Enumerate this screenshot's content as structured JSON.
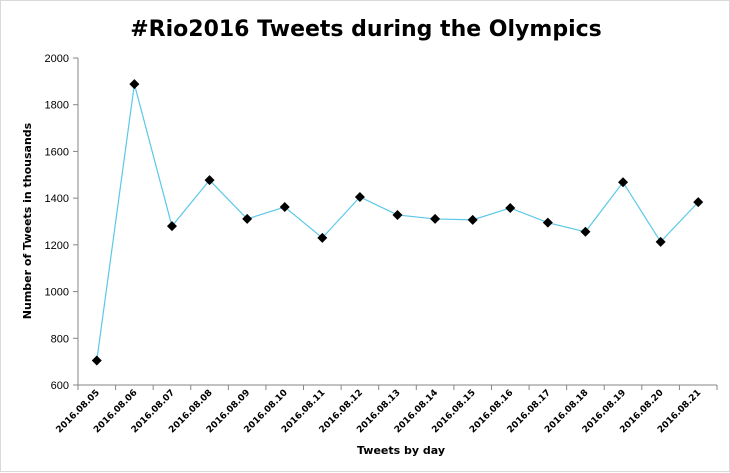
{
  "chart_data": {
    "type": "line",
    "title": "#Rio2016 Tweets during the Olympics",
    "xlabel": "Tweets by day",
    "ylabel": "Number of Tweets in thousands",
    "categories": [
      "2016.08.05",
      "2016.08.06",
      "2016.08.07",
      "2016.08.08",
      "2016.08.09",
      "2016.08.10",
      "2016.08.11",
      "2016.08.12",
      "2016.08.13",
      "2016.08.14",
      "2016.08.15",
      "2016.08.16",
      "2016.08.17",
      "2016.08.18",
      "2016.08.19",
      "2016.08.20",
      "2016.08.21"
    ],
    "series": [
      {
        "values": [
          705,
          1888,
          1280,
          1477,
          1311,
          1362,
          1230,
          1405,
          1328,
          1311,
          1307,
          1358,
          1295,
          1256,
          1468,
          1213,
          1383
        ]
      }
    ],
    "ylim": [
      600,
      2000
    ],
    "yticks": [
      600,
      800,
      1000,
      1200,
      1400,
      1600,
      1800,
      2000
    ],
    "grid": false,
    "legend": "none",
    "colors": {
      "line": "#5bc8e8",
      "marker": "#000000",
      "axis": "#868686"
    }
  }
}
